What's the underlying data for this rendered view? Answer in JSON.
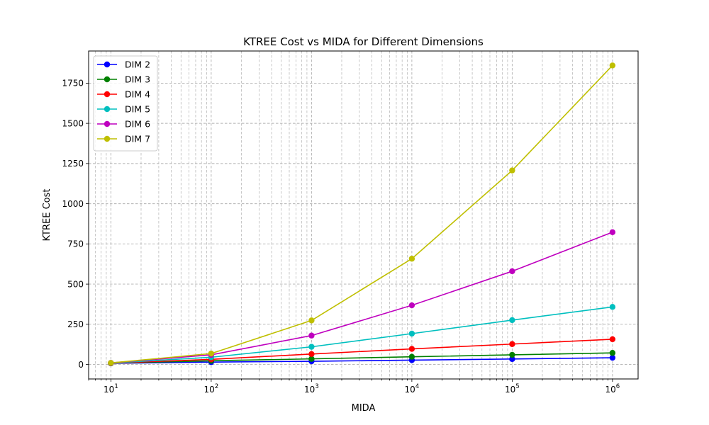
{
  "chart_data": {
    "type": "line",
    "title": "KTREE Cost vs MIDA for Different Dimensions",
    "xlabel": "MIDA",
    "ylabel": "KTREE Cost",
    "xscale": "log",
    "xlim": [
      6,
      1800000
    ],
    "ylim": [
      -90,
      1950
    ],
    "x": [
      10,
      100,
      1000,
      10000,
      100000,
      1000000
    ],
    "x_ticks": [
      {
        "value": 10,
        "base": "10",
        "exp": "1"
      },
      {
        "value": 100,
        "base": "10",
        "exp": "2"
      },
      {
        "value": 1000,
        "base": "10",
        "exp": "3"
      },
      {
        "value": 10000,
        "base": "10",
        "exp": "4"
      },
      {
        "value": 100000,
        "base": "10",
        "exp": "5"
      },
      {
        "value": 1000000,
        "base": "10",
        "exp": "6"
      }
    ],
    "y_ticks": [
      {
        "value": 0,
        "label": "0"
      },
      {
        "value": 250,
        "label": "250"
      },
      {
        "value": 500,
        "label": "500"
      },
      {
        "value": 750,
        "label": "750"
      },
      {
        "value": 1000,
        "label": "1000"
      },
      {
        "value": 1250,
        "label": "1250"
      },
      {
        "value": 1500,
        "label": "1500"
      },
      {
        "value": 1750,
        "label": "1750"
      }
    ],
    "grid": true,
    "grid_style": "dashed",
    "legend_position": "top-left",
    "marker": "circle",
    "series": [
      {
        "name": "DIM 2",
        "color": "#0000ff",
        "values": [
          7,
          15,
          20,
          27,
          34,
          42
        ]
      },
      {
        "name": "DIM 3",
        "color": "#008000",
        "values": [
          8,
          23,
          35,
          48,
          60,
          72
        ]
      },
      {
        "name": "DIM 4",
        "color": "#ff0000",
        "values": [
          8,
          32,
          65,
          97,
          127,
          157
        ]
      },
      {
        "name": "DIM 5",
        "color": "#00bfbf",
        "values": [
          9,
          45,
          110,
          192,
          276,
          358
        ]
      },
      {
        "name": "DIM 6",
        "color": "#bf00bf",
        "values": [
          10,
          60,
          180,
          368,
          580,
          823
        ]
      },
      {
        "name": "DIM 7",
        "color": "#bfbf00",
        "values": [
          10,
          68,
          274,
          658,
          1207,
          1860
        ]
      }
    ]
  }
}
